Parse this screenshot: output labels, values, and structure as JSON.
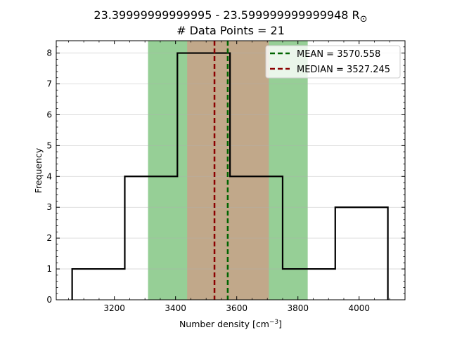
{
  "chart_data": {
    "type": "histogram",
    "title_line1": "23.39999999999995 - 23.599999999999948 R",
    "title_symbol": "⊙",
    "title_line2": "# Data Points = 21",
    "xlabel_main": "Number density [cm",
    "xlabel_sup": "−3",
    "xlabel_end": "]",
    "ylabel": "Frequency",
    "xlim": [
      3010,
      4150
    ],
    "ylim": [
      0,
      8.4
    ],
    "x_ticks": [
      3200,
      3400,
      3600,
      3800,
      4000
    ],
    "y_ticks": [
      0,
      1,
      2,
      3,
      4,
      5,
      6,
      7,
      8
    ],
    "grid": "horizontal",
    "bin_edges": [
      3062,
      3234,
      3406,
      3578,
      3750,
      3922,
      4094
    ],
    "counts": [
      1,
      4,
      8,
      4,
      1,
      3
    ],
    "mean": 3570.558,
    "median": 3527.245,
    "bands": [
      {
        "name": "mean-std-band",
        "range": [
          3310,
          3832
        ],
        "color": "#96cf96"
      },
      {
        "name": "median-std-band",
        "range": [
          3438,
          3705
        ],
        "color": "#c1a88a"
      }
    ],
    "legend": [
      {
        "label": "MEAN = 3570.558",
        "color": "#006400"
      },
      {
        "label": "MEDIAN = 3527.245",
        "color": "#8b0000"
      }
    ],
    "legend_position": "top-right"
  }
}
